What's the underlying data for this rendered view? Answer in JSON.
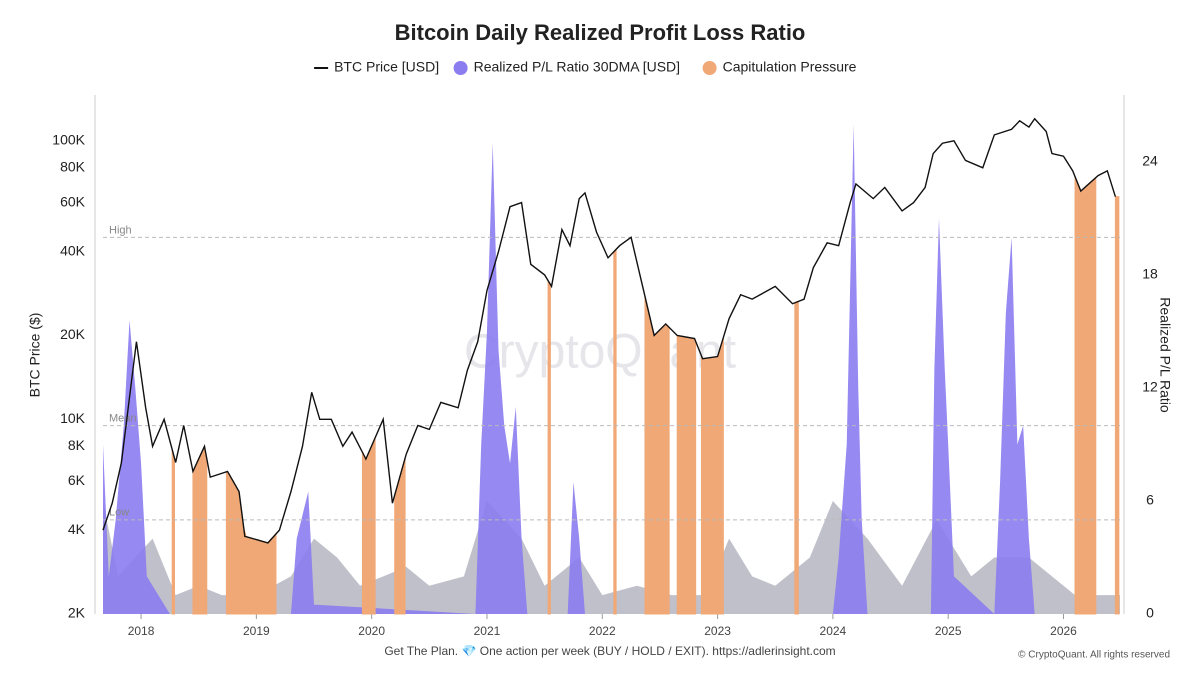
{
  "chart_data": {
    "type": "line",
    "title": "Bitcoin Daily Realized Profit Loss Ratio",
    "ylabel": "BTC Price ($)",
    "y2label": "Realized P/L Ratio",
    "watermark": "CryptoQuant",
    "footer": "Get The Plan. 💎 One action per week (BUY / HOLD / EXIT). https://adlerinsight.com",
    "copyright": "© CryptoQuant. All rights reserved",
    "xlim": [
      2017.67,
      2026.49
    ],
    "xticks": [
      2018,
      2019,
      2020,
      2021,
      2022,
      2023,
      2024,
      2025,
      2026
    ],
    "ylim": [
      2000,
      146000
    ],
    "log_y": true,
    "yticks": [
      {
        "value": 2000,
        "label": "2K"
      },
      {
        "value": 4000,
        "label": "4K"
      },
      {
        "value": 6000,
        "label": "6K"
      },
      {
        "value": 8000,
        "label": "8K"
      },
      {
        "value": 10000,
        "label": "10K"
      },
      {
        "value": 20000,
        "label": "20K"
      },
      {
        "value": 40000,
        "label": "40K"
      },
      {
        "value": 60000,
        "label": "60K"
      },
      {
        "value": 80000,
        "label": "80K"
      },
      {
        "value": 100000,
        "label": "100K"
      }
    ],
    "y2lim": [
      0,
      27.56
    ],
    "y2ticks": [
      0,
      6,
      12,
      18,
      24
    ],
    "reference_lines": [
      {
        "label": "High",
        "value": 20
      },
      {
        "label": "Mean",
        "value": 10
      },
      {
        "label": "Low",
        "value": 5
      }
    ],
    "series": [
      {
        "name": "BTC Price [USD]",
        "color": "#111111",
        "type": "line",
        "x": [
          2017.67,
          2017.75,
          2017.83,
          2017.92,
          2017.96,
          2018.04,
          2018.1,
          2018.2,
          2018.3,
          2018.37,
          2018.45,
          2018.55,
          2018.6,
          2018.75,
          2018.85,
          2018.9,
          2019.0,
          2019.1,
          2019.2,
          2019.3,
          2019.4,
          2019.48,
          2019.55,
          2019.65,
          2019.75,
          2019.83,
          2019.95,
          2020.1,
          2020.18,
          2020.3,
          2020.4,
          2020.5,
          2020.6,
          2020.75,
          2020.83,
          2020.92,
          2021.0,
          2021.1,
          2021.2,
          2021.3,
          2021.38,
          2021.5,
          2021.56,
          2021.65,
          2021.72,
          2021.8,
          2021.85,
          2021.95,
          2022.05,
          2022.15,
          2022.25,
          2022.35,
          2022.45,
          2022.55,
          2022.65,
          2022.8,
          2022.87,
          2023.0,
          2023.1,
          2023.2,
          2023.3,
          2023.5,
          2023.65,
          2023.75,
          2023.83,
          2023.95,
          2024.05,
          2024.15,
          2024.2,
          2024.35,
          2024.45,
          2024.6,
          2024.7,
          2024.8,
          2024.87,
          2024.95,
          2025.05,
          2025.15,
          2025.3,
          2025.4,
          2025.55,
          2025.62,
          2025.7,
          2025.75,
          2025.85,
          2025.9,
          2026.0,
          2026.08,
          2026.15,
          2026.3,
          2026.38,
          2026.45
        ],
        "values": [
          4000,
          5000,
          7000,
          14000,
          19000,
          11000,
          8000,
          10000,
          7000,
          9500,
          6500,
          8000,
          6200,
          6500,
          5500,
          3800,
          3700,
          3600,
          4000,
          5500,
          8000,
          12500,
          10000,
          10000,
          8000,
          9000,
          7200,
          10000,
          5000,
          7500,
          9500,
          9200,
          11500,
          11000,
          15000,
          19000,
          29000,
          40000,
          58000,
          60000,
          36000,
          33000,
          30000,
          48000,
          42000,
          62000,
          65000,
          47000,
          38000,
          42000,
          45000,
          30000,
          20000,
          22000,
          20000,
          19500,
          16500,
          16800,
          23000,
          28000,
          27000,
          30000,
          26000,
          27000,
          35000,
          43000,
          42000,
          60000,
          70000,
          62000,
          68000,
          56000,
          60000,
          68000,
          90000,
          98000,
          100000,
          85000,
          80000,
          105000,
          110000,
          118000,
          112000,
          120000,
          108000,
          90000,
          88000,
          78000,
          66000,
          75000,
          78000,
          63000
        ]
      },
      {
        "name": "Realized P/L Ratio 30DMA [USD]",
        "color": "#8b7cf0",
        "type": "area",
        "axis": "y2",
        "x": [
          2017.67,
          2017.72,
          2017.78,
          2017.85,
          2017.9,
          2017.95,
          2018.0,
          2018.05,
          2018.25,
          2019.3,
          2019.35,
          2019.45,
          2019.5,
          2020.9,
          2020.95,
          2021.0,
          2021.05,
          2021.1,
          2021.15,
          2021.2,
          2021.25,
          2021.3,
          2021.35,
          2021.7,
          2021.75,
          2021.8,
          2021.85,
          2024.0,
          2024.05,
          2024.12,
          2024.18,
          2024.22,
          2024.25,
          2024.3,
          2024.85,
          2024.88,
          2024.92,
          2024.97,
          2025.0,
          2025.05,
          2025.4,
          2025.45,
          2025.5,
          2025.55,
          2025.6,
          2025.65,
          2025.7,
          2025.75,
          2026.49
        ],
        "values": [
          9,
          2,
          5,
          10,
          15.6,
          12,
          8,
          2,
          0,
          0,
          4,
          6.5,
          0.5,
          0,
          9,
          15,
          25,
          14,
          10,
          8,
          11,
          4,
          0,
          0,
          7,
          4,
          0,
          0,
          3,
          9,
          26,
          12,
          5,
          0,
          0,
          13,
          21,
          13,
          9,
          2,
          0,
          7,
          16,
          20,
          9,
          10,
          4,
          0,
          0
        ]
      },
      {
        "name": "Capitulation Pressure",
        "color": "#f0a877",
        "type": "periods",
        "periods": [
          [
            2018.27,
            2018.29
          ],
          [
            2018.45,
            2018.57
          ],
          [
            2018.74,
            2019.17
          ],
          [
            2019.92,
            2020.03
          ],
          [
            2020.2,
            2020.29
          ],
          [
            2021.53,
            2021.55
          ],
          [
            2022.1,
            2022.12
          ],
          [
            2022.37,
            2022.58
          ],
          [
            2022.65,
            2022.81
          ],
          [
            2022.86,
            2023.05
          ],
          [
            2023.67,
            2023.7
          ],
          [
            2026.1,
            2026.28
          ],
          [
            2026.45,
            2026.48
          ]
        ]
      },
      {
        "color": "#b9b9c4",
        "type": "area",
        "axis": "y2",
        "x": [
          2017.67,
          2017.8,
          2018.1,
          2018.3,
          2018.5,
          2018.7,
          2019.0,
          2019.3,
          2019.5,
          2019.7,
          2019.9,
          2020.1,
          2020.3,
          2020.5,
          2020.8,
          2021.0,
          2021.3,
          2021.5,
          2021.8,
          2022.0,
          2022.3,
          2022.6,
          2022.9,
          2023.1,
          2023.3,
          2023.5,
          2023.8,
          2024.0,
          2024.3,
          2024.6,
          2024.9,
          2025.2,
          2025.4,
          2025.7,
          2025.9,
          2026.1,
          2026.3,
          2026.49
        ],
        "values": [
          6,
          2,
          4,
          1,
          1.5,
          1,
          1,
          2,
          4,
          3,
          1.5,
          2,
          2.5,
          1.5,
          2,
          6,
          4,
          1.5,
          3,
          1,
          1.5,
          1,
          1,
          4,
          2,
          1.5,
          3,
          6,
          4,
          1.5,
          5,
          2,
          3,
          3,
          2,
          1,
          1,
          1
        ]
      }
    ]
  }
}
